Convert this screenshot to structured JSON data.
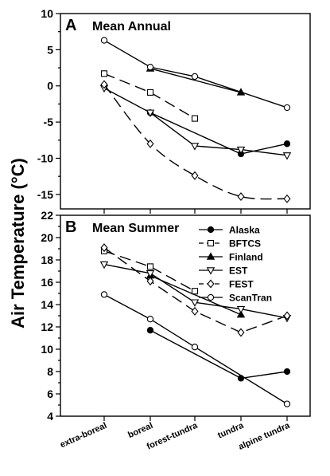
{
  "ylabel": "Air Temperature (°C)",
  "categories": [
    "extra-boreal",
    "boreal",
    "forest-tundra",
    "tundra",
    "alpine tundra"
  ],
  "legend": [
    {
      "name": "Alaska",
      "marker": "circle",
      "fill": "#000000",
      "dash": false
    },
    {
      "name": "BFTCS",
      "marker": "square",
      "fill": "#ffffff",
      "dash": true
    },
    {
      "name": "Finland",
      "marker": "triangle-up",
      "fill": "#000000",
      "dash": false
    },
    {
      "name": "EST",
      "marker": "triangle-down",
      "fill": "#ffffff",
      "dash": false
    },
    {
      "name": "FEST",
      "marker": "diamond",
      "fill": "#ffffff",
      "dash": true
    },
    {
      "name": "ScanTran",
      "marker": "circle",
      "fill": "#ffffff",
      "dash": false
    }
  ],
  "chart_data": [
    {
      "type": "line",
      "panel": "A",
      "title": "Mean Annual",
      "ylim": [
        -17,
        10
      ],
      "yticks": [
        -15,
        -10,
        -5,
        0,
        5,
        10
      ],
      "categories": [
        "extra-boreal",
        "boreal",
        "forest-tundra",
        "tundra",
        "alpine tundra"
      ],
      "series": [
        {
          "name": "Alaska",
          "values": [
            null,
            -3.7,
            null,
            -9.4,
            -8.0
          ]
        },
        {
          "name": "BFTCS",
          "values": [
            1.7,
            -0.9,
            -4.5,
            null,
            null
          ]
        },
        {
          "name": "Finland",
          "values": [
            null,
            2.4,
            null,
            -0.9,
            null
          ]
        },
        {
          "name": "EST",
          "values": [
            -0.3,
            -3.7,
            -8.3,
            -8.8,
            -9.6
          ]
        },
        {
          "name": "FEST",
          "values": [
            0.2,
            -8.0,
            -12.4,
            -15.3,
            -15.6
          ]
        },
        {
          "name": "ScanTran",
          "values": [
            6.3,
            2.6,
            1.3,
            null,
            -3.0
          ]
        }
      ]
    },
    {
      "type": "line",
      "panel": "B",
      "title": "Mean Summer",
      "ylim": [
        4,
        22
      ],
      "yticks": [
        4,
        6,
        8,
        10,
        12,
        14,
        16,
        18,
        20,
        22
      ],
      "categories": [
        "extra-boreal",
        "boreal",
        "forest-tundra",
        "tundra",
        "alpine tundra"
      ],
      "series": [
        {
          "name": "Alaska",
          "values": [
            null,
            11.7,
            null,
            7.4,
            8.0
          ]
        },
        {
          "name": "BFTCS",
          "values": [
            18.8,
            17.4,
            15.2,
            null,
            null
          ]
        },
        {
          "name": "Finland",
          "values": [
            null,
            16.6,
            null,
            13.1,
            null
          ]
        },
        {
          "name": "EST",
          "values": [
            17.6,
            16.8,
            14.2,
            13.6,
            12.8
          ]
        },
        {
          "name": "FEST",
          "values": [
            19.1,
            16.1,
            13.4,
            11.5,
            13.0
          ]
        },
        {
          "name": "ScanTran",
          "values": [
            14.9,
            12.7,
            10.2,
            null,
            5.1
          ]
        }
      ]
    }
  ]
}
